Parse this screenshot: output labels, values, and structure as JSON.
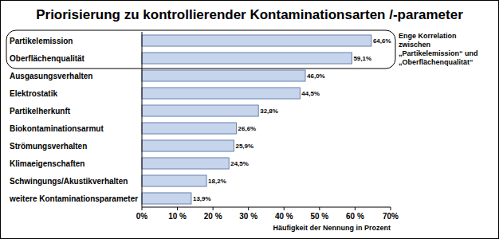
{
  "chart_data": {
    "type": "bar",
    "title": "Priorisierung zu kontrollierender Kontaminationsarten /-parameter",
    "orientation": "horizontal",
    "categories": [
      "Partikelemission",
      "Oberflächenqualität",
      "Ausgasungsverhalten",
      "Elektrostatik",
      "Partikelherkunft",
      "Biokontaminationsarmut",
      "Strömungsverhalten",
      "Klimaeigenschaften",
      "Schwingungs/Akustikverhalten",
      "weitere Kontaminationsparameter"
    ],
    "values": [
      64.6,
      59.1,
      46.0,
      44.5,
      32.8,
      26.6,
      25.9,
      24.5,
      18.2,
      13.9
    ],
    "value_labels": [
      "64,6%",
      "59,1%",
      "46,0%",
      "44,5%",
      "32,8%",
      "26,6%",
      "25,9%",
      "24,5%",
      "18,2%",
      "13,9%"
    ],
    "data_labels": true,
    "color": "#c6d4ec",
    "xlim": [
      0,
      70
    ],
    "xticks": [
      {
        "value": 0,
        "label": "0%"
      },
      {
        "value": 10,
        "label": "10 %"
      },
      {
        "value": 20,
        "label": "20 %"
      },
      {
        "value": 30,
        "label": "30 %"
      },
      {
        "value": 40,
        "label": "40 %"
      },
      {
        "value": 50,
        "label": "50 %"
      },
      {
        "value": 60,
        "label": "60 %"
      },
      {
        "value": 70,
        "label": "70%"
      }
    ],
    "xlabel": "Häufigkeit der Nennung in Prozent",
    "annotations": [
      "Enge Korrelation",
      "zwischen",
      "„Partikelemission“ und",
      "„Oberflächenqualität“"
    ],
    "grid": false
  }
}
